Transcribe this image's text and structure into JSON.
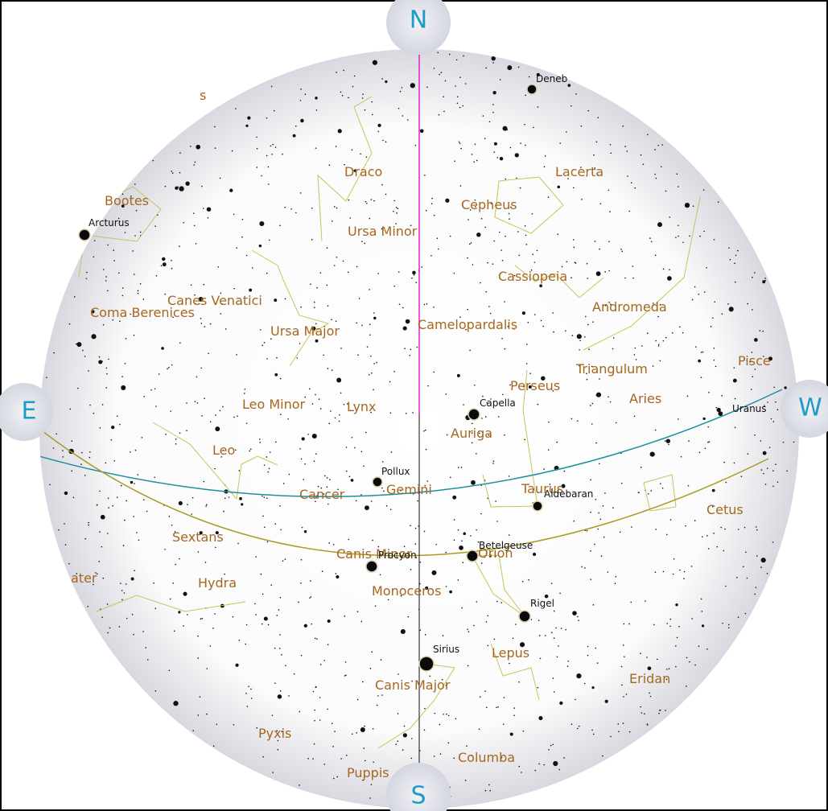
{
  "compass": {
    "north": "N",
    "south": "S",
    "east": "E",
    "west": "W"
  },
  "constellations": [
    "s",
    "Bootes",
    "Draco",
    "Lacerta",
    "Cepheus",
    "Ursa Minor",
    "Cassiopeia",
    "Canes Venatici",
    "Andromeda",
    "Coma Berenices",
    "Ursa Major",
    "Camelopardalis",
    "Triangulum",
    "Pisce",
    "Perseus",
    "Aries",
    "Leo Minor",
    "Lynx",
    "Auriga",
    "Leo",
    "Cancer",
    "Gemini",
    "Taurus",
    "Cetus",
    "Sextans",
    "Canis Minor",
    "Orion",
    "ater",
    "Hydra",
    "Monoceros",
    "Lepus",
    "Eridan",
    "Canis Major",
    "Pyxis",
    "Columba",
    "Puppis"
  ],
  "stars": [
    "Deneb",
    "Arcturus",
    "Capella",
    "Pollux",
    "Aldebaran",
    "Betelgeuse",
    "Procyon",
    "Rigel",
    "Sirius",
    "Uranus"
  ]
}
